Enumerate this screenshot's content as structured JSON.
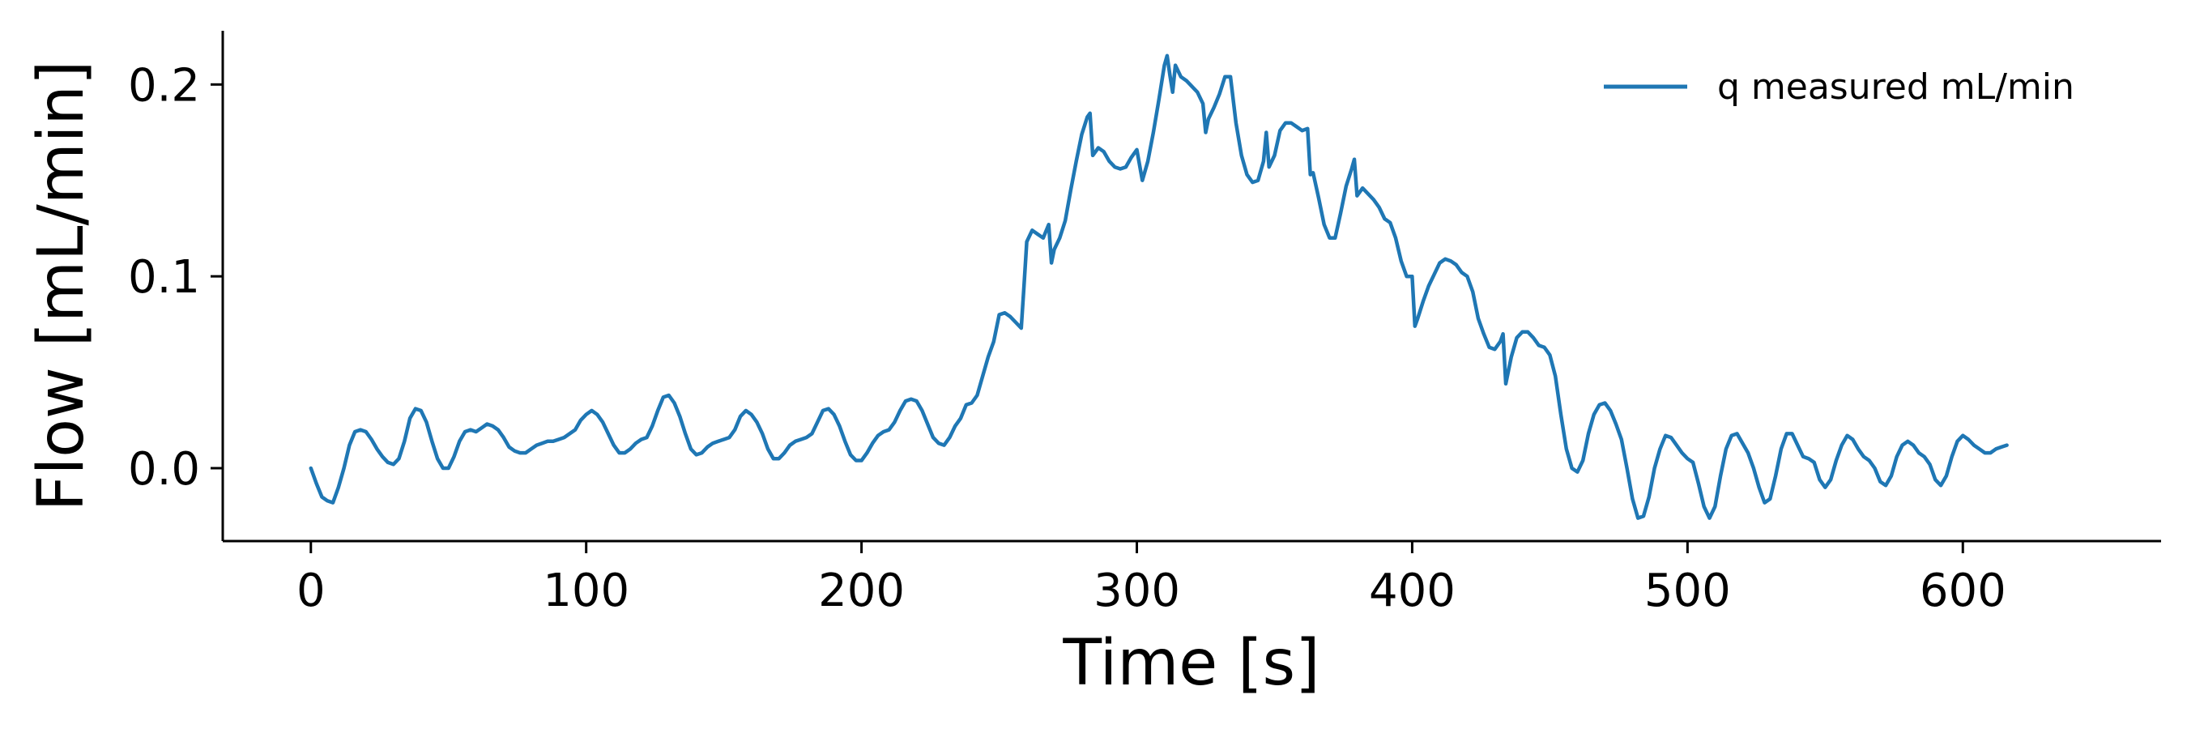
{
  "chart_data": {
    "type": "line",
    "title": "",
    "xlabel": "Time [s]",
    "ylabel": "Flow [mL/min]",
    "xlim": [
      -32,
      672
    ],
    "ylim": [
      -0.038,
      0.228
    ],
    "xticks": [
      0,
      100,
      200,
      300,
      400,
      500,
      600
    ],
    "xtick_labels": [
      "0",
      "100",
      "200",
      "300",
      "400",
      "500",
      "600"
    ],
    "yticks": [
      0.0,
      0.1,
      0.2
    ],
    "ytick_labels": [
      "0.0",
      "0.1",
      "0.2"
    ],
    "grid": false,
    "legend": "top-right",
    "colors": {
      "series": "#1f77b4",
      "axis": "#000000"
    },
    "series": [
      {
        "name": "q measured mL/min",
        "points": [
          [
            0,
            0.0
          ],
          [
            2,
            -0.008
          ],
          [
            4,
            -0.015
          ],
          [
            6,
            -0.017
          ],
          [
            8,
            -0.018
          ],
          [
            10,
            -0.01
          ],
          [
            12,
            0.0
          ],
          [
            14,
            0.012
          ],
          [
            16,
            0.019
          ],
          [
            18,
            0.02
          ],
          [
            20,
            0.019
          ],
          [
            22,
            0.015
          ],
          [
            24,
            0.01
          ],
          [
            26,
            0.006
          ],
          [
            28,
            0.003
          ],
          [
            30,
            0.002
          ],
          [
            32,
            0.005
          ],
          [
            34,
            0.014
          ],
          [
            36,
            0.026
          ],
          [
            38,
            0.031
          ],
          [
            40,
            0.03
          ],
          [
            42,
            0.024
          ],
          [
            44,
            0.014
          ],
          [
            46,
            0.005
          ],
          [
            48,
            0.0
          ],
          [
            50,
            0.0
          ],
          [
            52,
            0.006
          ],
          [
            54,
            0.014
          ],
          [
            56,
            0.019
          ],
          [
            58,
            0.02
          ],
          [
            60,
            0.019
          ],
          [
            62,
            0.021
          ],
          [
            64,
            0.023
          ],
          [
            66,
            0.022
          ],
          [
            68,
            0.02
          ],
          [
            70,
            0.016
          ],
          [
            72,
            0.011
          ],
          [
            74,
            0.009
          ],
          [
            76,
            0.008
          ],
          [
            78,
            0.008
          ],
          [
            80,
            0.01
          ],
          [
            82,
            0.012
          ],
          [
            84,
            0.013
          ],
          [
            86,
            0.014
          ],
          [
            88,
            0.014
          ],
          [
            90,
            0.015
          ],
          [
            92,
            0.016
          ],
          [
            94,
            0.018
          ],
          [
            96,
            0.02
          ],
          [
            98,
            0.025
          ],
          [
            100,
            0.028
          ],
          [
            102,
            0.03
          ],
          [
            104,
            0.028
          ],
          [
            106,
            0.024
          ],
          [
            108,
            0.018
          ],
          [
            110,
            0.012
          ],
          [
            112,
            0.008
          ],
          [
            114,
            0.008
          ],
          [
            116,
            0.01
          ],
          [
            118,
            0.013
          ],
          [
            120,
            0.015
          ],
          [
            122,
            0.016
          ],
          [
            124,
            0.022
          ],
          [
            126,
            0.03
          ],
          [
            128,
            0.037
          ],
          [
            130,
            0.038
          ],
          [
            132,
            0.034
          ],
          [
            134,
            0.027
          ],
          [
            136,
            0.018
          ],
          [
            138,
            0.01
          ],
          [
            140,
            0.007
          ],
          [
            142,
            0.008
          ],
          [
            144,
            0.011
          ],
          [
            146,
            0.013
          ],
          [
            148,
            0.014
          ],
          [
            150,
            0.015
          ],
          [
            152,
            0.016
          ],
          [
            154,
            0.02
          ],
          [
            156,
            0.027
          ],
          [
            158,
            0.03
          ],
          [
            160,
            0.028
          ],
          [
            162,
            0.024
          ],
          [
            164,
            0.018
          ],
          [
            166,
            0.01
          ],
          [
            168,
            0.005
          ],
          [
            170,
            0.005
          ],
          [
            172,
            0.008
          ],
          [
            174,
            0.012
          ],
          [
            176,
            0.014
          ],
          [
            178,
            0.015
          ],
          [
            180,
            0.016
          ],
          [
            182,
            0.018
          ],
          [
            184,
            0.024
          ],
          [
            186,
            0.03
          ],
          [
            188,
            0.031
          ],
          [
            190,
            0.028
          ],
          [
            192,
            0.022
          ],
          [
            194,
            0.014
          ],
          [
            196,
            0.007
          ],
          [
            198,
            0.004
          ],
          [
            200,
            0.004
          ],
          [
            202,
            0.008
          ],
          [
            204,
            0.013
          ],
          [
            206,
            0.017
          ],
          [
            208,
            0.019
          ],
          [
            210,
            0.02
          ],
          [
            212,
            0.024
          ],
          [
            214,
            0.03
          ],
          [
            216,
            0.035
          ],
          [
            218,
            0.036
          ],
          [
            220,
            0.035
          ],
          [
            222,
            0.03
          ],
          [
            224,
            0.023
          ],
          [
            226,
            0.016
          ],
          [
            228,
            0.013
          ],
          [
            230,
            0.012
          ],
          [
            232,
            0.016
          ],
          [
            234,
            0.022
          ],
          [
            236,
            0.026
          ],
          [
            238,
            0.033
          ],
          [
            240,
            0.034
          ],
          [
            242,
            0.038
          ],
          [
            244,
            0.048
          ],
          [
            246,
            0.058
          ],
          [
            248,
            0.066
          ],
          [
            250,
            0.08
          ],
          [
            252,
            0.081
          ],
          [
            254,
            0.079
          ],
          [
            256,
            0.076
          ],
          [
            258,
            0.073
          ],
          [
            259,
            0.095
          ],
          [
            260,
            0.118
          ],
          [
            262,
            0.124
          ],
          [
            264,
            0.122
          ],
          [
            266,
            0.12
          ],
          [
            268,
            0.127
          ],
          [
            269,
            0.107
          ],
          [
            270,
            0.114
          ],
          [
            272,
            0.12
          ],
          [
            274,
            0.129
          ],
          [
            276,
            0.145
          ],
          [
            278,
            0.16
          ],
          [
            280,
            0.174
          ],
          [
            282,
            0.183
          ],
          [
            283,
            0.185
          ],
          [
            284,
            0.163
          ],
          [
            286,
            0.167
          ],
          [
            288,
            0.165
          ],
          [
            290,
            0.16
          ],
          [
            292,
            0.157
          ],
          [
            294,
            0.156
          ],
          [
            296,
            0.157
          ],
          [
            298,
            0.162
          ],
          [
            300,
            0.166
          ],
          [
            302,
            0.15
          ],
          [
            304,
            0.16
          ],
          [
            306,
            0.175
          ],
          [
            308,
            0.192
          ],
          [
            310,
            0.21
          ],
          [
            311,
            0.215
          ],
          [
            312,
            0.205
          ],
          [
            313,
            0.196
          ],
          [
            314,
            0.21
          ],
          [
            316,
            0.204
          ],
          [
            318,
            0.202
          ],
          [
            320,
            0.199
          ],
          [
            322,
            0.196
          ],
          [
            324,
            0.19
          ],
          [
            325,
            0.175
          ],
          [
            326,
            0.182
          ],
          [
            328,
            0.188
          ],
          [
            330,
            0.195
          ],
          [
            332,
            0.204
          ],
          [
            334,
            0.204
          ],
          [
            336,
            0.18
          ],
          [
            338,
            0.163
          ],
          [
            340,
            0.153
          ],
          [
            342,
            0.149
          ],
          [
            344,
            0.15
          ],
          [
            346,
            0.16
          ],
          [
            347,
            0.175
          ],
          [
            348,
            0.157
          ],
          [
            350,
            0.163
          ],
          [
            352,
            0.176
          ],
          [
            354,
            0.18
          ],
          [
            356,
            0.18
          ],
          [
            358,
            0.178
          ],
          [
            360,
            0.176
          ],
          [
            362,
            0.177
          ],
          [
            363,
            0.153
          ],
          [
            364,
            0.154
          ],
          [
            366,
            0.141
          ],
          [
            368,
            0.127
          ],
          [
            370,
            0.12
          ],
          [
            372,
            0.12
          ],
          [
            374,
            0.133
          ],
          [
            376,
            0.147
          ],
          [
            378,
            0.156
          ],
          [
            379,
            0.161
          ],
          [
            380,
            0.142
          ],
          [
            382,
            0.146
          ],
          [
            384,
            0.143
          ],
          [
            386,
            0.14
          ],
          [
            388,
            0.136
          ],
          [
            390,
            0.13
          ],
          [
            392,
            0.128
          ],
          [
            394,
            0.12
          ],
          [
            396,
            0.108
          ],
          [
            398,
            0.1
          ],
          [
            400,
            0.1
          ],
          [
            401,
            0.074
          ],
          [
            402,
            0.078
          ],
          [
            404,
            0.087
          ],
          [
            406,
            0.095
          ],
          [
            408,
            0.101
          ],
          [
            410,
            0.107
          ],
          [
            412,
            0.109
          ],
          [
            414,
            0.108
          ],
          [
            416,
            0.106
          ],
          [
            418,
            0.102
          ],
          [
            420,
            0.1
          ],
          [
            422,
            0.092
          ],
          [
            424,
            0.078
          ],
          [
            426,
            0.07
          ],
          [
            428,
            0.063
          ],
          [
            430,
            0.062
          ],
          [
            432,
            0.066
          ],
          [
            433,
            0.07
          ],
          [
            434,
            0.044
          ],
          [
            436,
            0.058
          ],
          [
            438,
            0.068
          ],
          [
            440,
            0.071
          ],
          [
            442,
            0.071
          ],
          [
            444,
            0.068
          ],
          [
            446,
            0.064
          ],
          [
            448,
            0.063
          ],
          [
            450,
            0.059
          ],
          [
            452,
            0.048
          ],
          [
            454,
            0.028
          ],
          [
            456,
            0.01
          ],
          [
            458,
            0.0
          ],
          [
            460,
            -0.002
          ],
          [
            462,
            0.004
          ],
          [
            464,
            0.018
          ],
          [
            466,
            0.028
          ],
          [
            468,
            0.033
          ],
          [
            470,
            0.034
          ],
          [
            472,
            0.03
          ],
          [
            474,
            0.023
          ],
          [
            476,
            0.015
          ],
          [
            478,
            0.0
          ],
          [
            480,
            -0.016
          ],
          [
            482,
            -0.026
          ],
          [
            484,
            -0.025
          ],
          [
            486,
            -0.015
          ],
          [
            488,
            0.0
          ],
          [
            490,
            0.01
          ],
          [
            492,
            0.017
          ],
          [
            494,
            0.016
          ],
          [
            496,
            0.012
          ],
          [
            498,
            0.008
          ],
          [
            500,
            0.005
          ],
          [
            502,
            0.003
          ],
          [
            504,
            -0.008
          ],
          [
            506,
            -0.02
          ],
          [
            508,
            -0.026
          ],
          [
            510,
            -0.02
          ],
          [
            512,
            -0.004
          ],
          [
            514,
            0.01
          ],
          [
            516,
            0.017
          ],
          [
            518,
            0.018
          ],
          [
            520,
            0.013
          ],
          [
            522,
            0.008
          ],
          [
            524,
            0.0
          ],
          [
            526,
            -0.01
          ],
          [
            528,
            -0.018
          ],
          [
            530,
            -0.016
          ],
          [
            532,
            -0.004
          ],
          [
            534,
            0.01
          ],
          [
            536,
            0.018
          ],
          [
            538,
            0.018
          ],
          [
            540,
            0.012
          ],
          [
            542,
            0.006
          ],
          [
            544,
            0.005
          ],
          [
            546,
            0.003
          ],
          [
            548,
            -0.006
          ],
          [
            550,
            -0.01
          ],
          [
            552,
            -0.006
          ],
          [
            554,
            0.004
          ],
          [
            556,
            0.012
          ],
          [
            558,
            0.017
          ],
          [
            560,
            0.015
          ],
          [
            562,
            0.01
          ],
          [
            564,
            0.006
          ],
          [
            566,
            0.004
          ],
          [
            568,
            0.0
          ],
          [
            570,
            -0.007
          ],
          [
            572,
            -0.009
          ],
          [
            574,
            -0.004
          ],
          [
            576,
            0.006
          ],
          [
            578,
            0.012
          ],
          [
            580,
            0.014
          ],
          [
            582,
            0.012
          ],
          [
            584,
            0.008
          ],
          [
            586,
            0.006
          ],
          [
            588,
            0.002
          ],
          [
            590,
            -0.006
          ],
          [
            592,
            -0.009
          ],
          [
            594,
            -0.004
          ],
          [
            596,
            0.006
          ],
          [
            598,
            0.014
          ],
          [
            600,
            0.017
          ],
          [
            602,
            0.015
          ],
          [
            604,
            0.012
          ],
          [
            606,
            0.01
          ],
          [
            608,
            0.008
          ],
          [
            610,
            0.008
          ],
          [
            612,
            0.01
          ],
          [
            614,
            0.011
          ],
          [
            616,
            0.012
          ]
        ]
      }
    ]
  }
}
